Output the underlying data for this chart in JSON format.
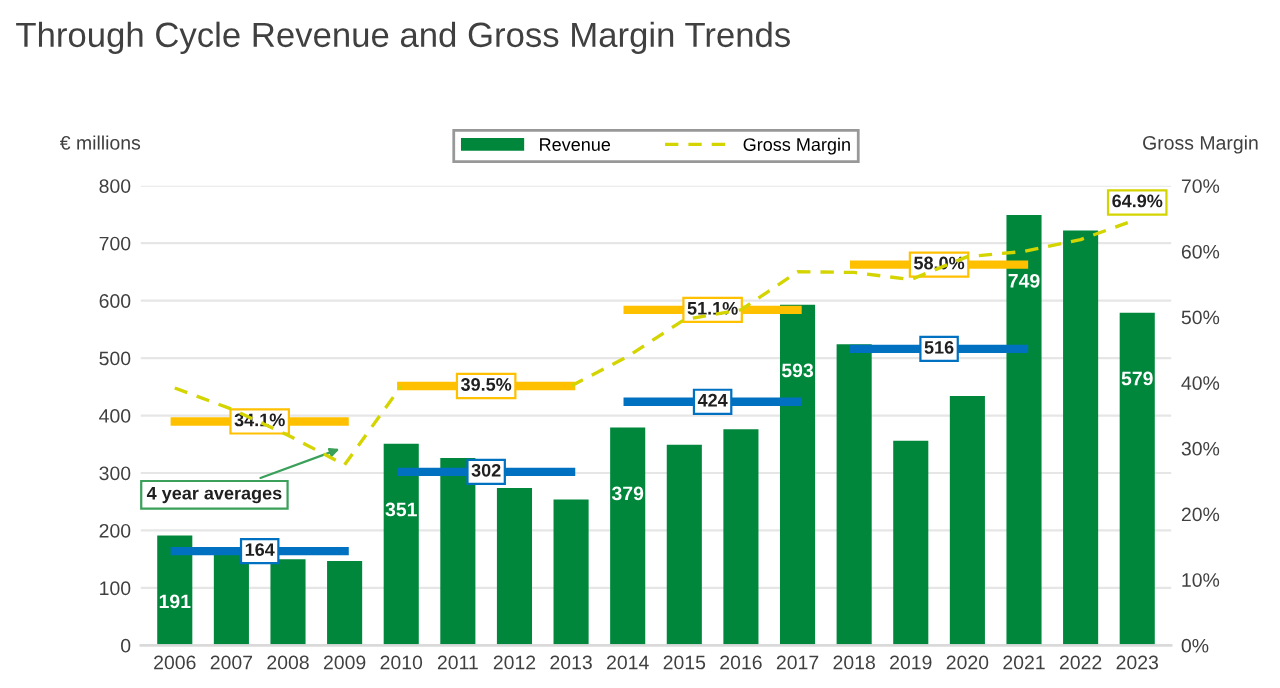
{
  "chart_data": {
    "type": "bar",
    "title": "Through Cycle Revenue and Gross Margin Trends",
    "ylabel": "€ millions",
    "y2label": "Gross Margin",
    "categories": [
      "2006",
      "2007",
      "2008",
      "2009",
      "2010",
      "2011",
      "2012",
      "2013",
      "2014",
      "2015",
      "2016",
      "2017",
      "2018",
      "2019",
      "2020",
      "2021",
      "2022",
      "2023"
    ],
    "series": [
      {
        "name": "Revenue",
        "color": "#00873c",
        "values": [
          191,
          167,
          150,
          147,
          351,
          326,
          274,
          254,
          379,
          349,
          376,
          593,
          524,
          356,
          434,
          749,
          722,
          579
        ],
        "value_labels": [
          "191",
          null,
          null,
          null,
          "351",
          null,
          null,
          null,
          "379",
          null,
          null,
          "593",
          null,
          null,
          null,
          "749",
          null,
          "579"
        ]
      },
      {
        "name": "Gross Margin",
        "type": "line",
        "axis": "y2",
        "color": "#d4d400",
        "line_style": "dashed",
        "values": [
          39.2,
          36.0,
          32.0,
          27.5,
          39.5,
          null,
          null,
          39.5,
          44.0,
          49.6,
          51.1,
          56.9,
          56.8,
          55.7,
          59.2,
          60.0,
          61.8,
          64.9
        ],
        "value_labels": [
          null,
          null,
          null,
          null,
          null,
          null,
          null,
          null,
          null,
          null,
          null,
          null,
          null,
          null,
          null,
          null,
          null,
          "64.9%"
        ]
      },
      {
        "type": "line",
        "color": "#ffc000",
        "axis": "y2",
        "line_style": "solid",
        "values": [
          34.1,
          34.1,
          34.1,
          34.1,
          null,
          null,
          null,
          null,
          null,
          null,
          null,
          null,
          null,
          null,
          null,
          null,
          null,
          null
        ],
        "value_labels": [
          null,
          "34.1%",
          null,
          null,
          null,
          null,
          null,
          null,
          null,
          null,
          null,
          null,
          null,
          null,
          null,
          null,
          null,
          null
        ]
      },
      {
        "type": "line",
        "color": "#ffc000",
        "axis": "y2",
        "line_style": "solid",
        "values": [
          null,
          null,
          null,
          null,
          39.5,
          39.5,
          39.5,
          39.5,
          null,
          null,
          null,
          null,
          null,
          null,
          null,
          null,
          null,
          null
        ],
        "value_labels": [
          null,
          null,
          null,
          null,
          null,
          "39.5%",
          null,
          null,
          null,
          null,
          null,
          null,
          null,
          null,
          null,
          null,
          null,
          null
        ]
      },
      {
        "type": "line",
        "color": "#ffc000",
        "axis": "y2",
        "line_style": "solid",
        "values": [
          null,
          null,
          null,
          null,
          null,
          null,
          null,
          null,
          51.1,
          51.1,
          51.1,
          51.1,
          null,
          null,
          null,
          null,
          null,
          null
        ],
        "value_labels": [
          null,
          null,
          null,
          null,
          null,
          null,
          null,
          null,
          null,
          "51.1%",
          null,
          null,
          null,
          null,
          null,
          null,
          null,
          null
        ]
      },
      {
        "type": "line",
        "color": "#ffc000",
        "axis": "y2",
        "line_style": "solid",
        "values": [
          null,
          null,
          null,
          null,
          null,
          null,
          null,
          null,
          null,
          null,
          null,
          null,
          58.0,
          58.0,
          58.0,
          58.0,
          null,
          null
        ],
        "value_labels": [
          null,
          null,
          null,
          null,
          null,
          null,
          null,
          null,
          null,
          null,
          null,
          null,
          null,
          "58.0%",
          null,
          null,
          null,
          null
        ]
      },
      {
        "type": "line",
        "color": "#0070c0",
        "line_style": "solid",
        "values": [
          164,
          164,
          164,
          164,
          null,
          null,
          null,
          null,
          null,
          null,
          null,
          null,
          null,
          null,
          null,
          null,
          null,
          null
        ],
        "value_labels": [
          null,
          "164",
          null,
          null,
          null,
          null,
          null,
          null,
          null,
          null,
          null,
          null,
          null,
          null,
          null,
          null,
          null,
          null
        ]
      },
      {
        "type": "line",
        "color": "#0070c0",
        "line_style": "solid",
        "values": [
          null,
          null,
          null,
          null,
          302,
          302,
          302,
          302,
          null,
          null,
          null,
          null,
          null,
          null,
          null,
          null,
          null,
          null
        ],
        "value_labels": [
          null,
          null,
          null,
          null,
          null,
          "302",
          null,
          null,
          null,
          null,
          null,
          null,
          null,
          null,
          null,
          null,
          null,
          null
        ]
      },
      {
        "type": "line",
        "color": "#0070c0",
        "line_style": "solid",
        "values": [
          null,
          null,
          null,
          null,
          null,
          null,
          null,
          null,
          424,
          424,
          424,
          424,
          null,
          null,
          null,
          null,
          null,
          null
        ],
        "value_labels": [
          null,
          null,
          null,
          null,
          null,
          null,
          null,
          null,
          null,
          "424",
          null,
          null,
          null,
          null,
          null,
          null,
          null,
          null
        ]
      },
      {
        "type": "line",
        "color": "#0070c0",
        "line_style": "solid",
        "values": [
          null,
          null,
          null,
          null,
          null,
          null,
          null,
          null,
          null,
          null,
          null,
          null,
          516,
          516,
          516,
          516,
          null,
          null
        ],
        "value_labels": [
          null,
          null,
          null,
          null,
          null,
          null,
          null,
          null,
          null,
          null,
          null,
          null,
          null,
          "516",
          null,
          null,
          null,
          null
        ]
      }
    ],
    "ylim": [
      0,
      800
    ],
    "yticks": [
      0,
      100,
      200,
      300,
      400,
      500,
      600,
      700,
      800
    ],
    "y2lim": [
      0,
      70
    ],
    "y2ticks": [
      {
        "value": 0,
        "label": "0%"
      },
      {
        "value": 10,
        "label": "10%"
      },
      {
        "value": 20,
        "label": "20%"
      },
      {
        "value": 30,
        "label": "30%"
      },
      {
        "value": 40,
        "label": "40%"
      },
      {
        "value": 50,
        "label": "50%"
      },
      {
        "value": 60,
        "label": "60%"
      },
      {
        "value": 70,
        "label": "70%"
      }
    ],
    "grid": "y",
    "legend": "top",
    "marker": "none",
    "annotations": [
      {
        "text": "4 year averages",
        "x": "2009",
        "y": 345
      }
    ]
  }
}
